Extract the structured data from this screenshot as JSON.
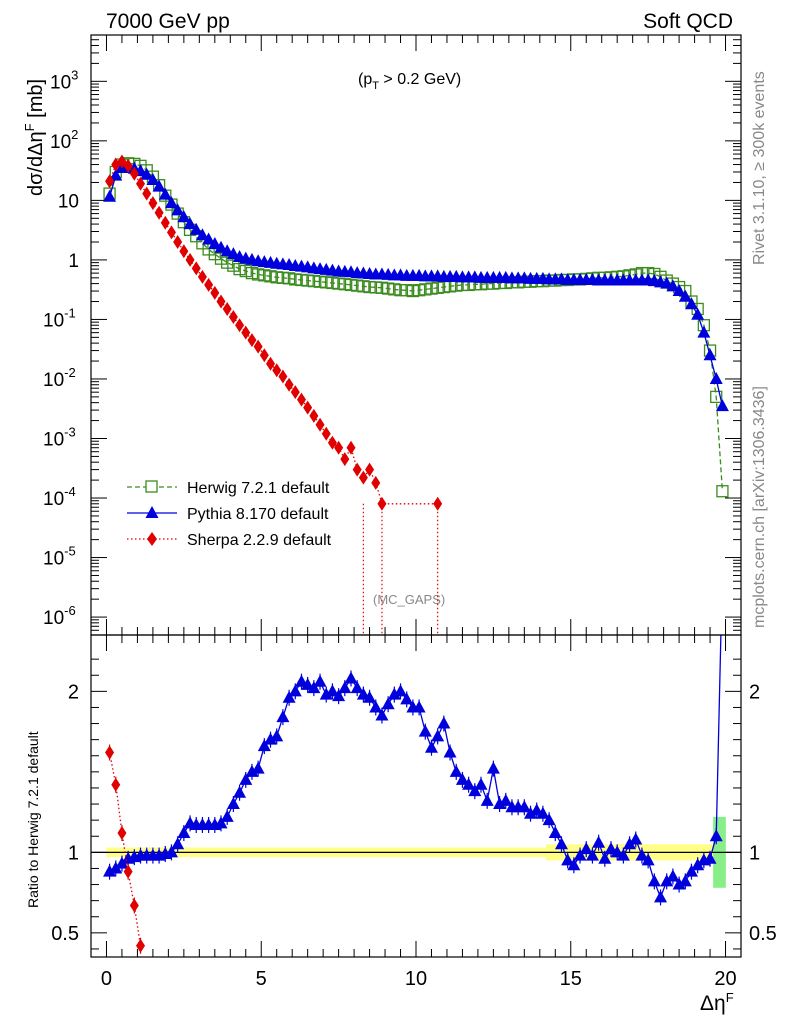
{
  "header": {
    "left": "7000 GeV pp",
    "right": "Soft QCD"
  },
  "side_labels": {
    "rivet": "Rivet 3.1.10, ≥ 300k events",
    "mcplots": "mcplots.cern.ch [arXiv:1306.3436]"
  },
  "chart_data": [
    {
      "type": "scatter",
      "panel": "main",
      "title": "",
      "annotation_cut": "(p",
      "annotation_cut_sub": "T",
      "annotation_cut_rest": " > 0.2 GeV)",
      "annotation_tag": "(MC_GAPS)",
      "ylabel": "dσ/dΔη",
      "ylabel_sup": "F",
      "ylabel_unit": " [mb]",
      "yscale": "log",
      "ylim": [
        5e-07,
        6000
      ],
      "xlim": [
        -0.5,
        20.5
      ],
      "y_ticks": [
        {
          "v": 1e-06,
          "base": "10",
          "exp": "-6"
        },
        {
          "v": 1e-05,
          "base": "10",
          "exp": "-5"
        },
        {
          "v": 0.0001,
          "base": "10",
          "exp": "-4"
        },
        {
          "v": 0.001,
          "base": "10",
          "exp": "-3"
        },
        {
          "v": 0.01,
          "base": "10",
          "exp": "-2"
        },
        {
          "v": 0.1,
          "base": "10",
          "exp": "-1"
        },
        {
          "v": 1,
          "base": "1",
          "exp": ""
        },
        {
          "v": 10,
          "base": "10",
          "exp": ""
        },
        {
          "v": 100,
          "base": "10",
          "exp": "2"
        },
        {
          "v": 1000,
          "base": "10",
          "exp": "3"
        }
      ],
      "legend": {
        "placement": "lower-left",
        "entries": [
          "Herwig 7.2.1 default",
          "Pythia 8.170 default",
          "Sherpa 2.2.9 default"
        ]
      },
      "series": [
        {
          "name": "Herwig 7.2.1 default",
          "color": "#3a8c1e",
          "marker": "open-square",
          "line": "dashed",
          "x": [
            0.1,
            0.3,
            0.5,
            0.7,
            0.9,
            1.1,
            1.3,
            1.5,
            1.7,
            1.9,
            2.1,
            2.3,
            2.5,
            2.7,
            2.9,
            3.1,
            3.3,
            3.5,
            3.7,
            3.9,
            4.1,
            4.3,
            4.5,
            4.7,
            4.9,
            5.1,
            5.3,
            5.5,
            5.7,
            5.9,
            6.1,
            6.3,
            6.5,
            6.7,
            6.9,
            7.1,
            7.3,
            7.5,
            7.7,
            7.9,
            8.1,
            8.3,
            8.5,
            8.7,
            8.9,
            9.1,
            9.3,
            9.5,
            9.7,
            9.9,
            10.1,
            10.3,
            10.5,
            10.7,
            10.9,
            11.1,
            11.3,
            11.5,
            11.7,
            11.9,
            12.1,
            12.3,
            12.5,
            12.7,
            12.9,
            13.1,
            13.3,
            13.5,
            13.7,
            13.9,
            14.1,
            14.3,
            14.5,
            14.7,
            14.9,
            15.1,
            15.3,
            15.5,
            15.7,
            15.9,
            16.1,
            16.3,
            16.5,
            16.7,
            16.9,
            17.1,
            17.3,
            17.5,
            17.7,
            17.9,
            18.1,
            18.3,
            18.5,
            18.7,
            18.9,
            19.1,
            19.3,
            19.5,
            19.7,
            19.9
          ],
          "y": [
            13,
            30,
            40,
            42,
            41,
            38,
            32,
            25,
            18,
            12,
            8.5,
            6,
            4.3,
            3.2,
            2.5,
            1.9,
            1.5,
            1.25,
            1.05,
            0.9,
            0.8,
            0.7,
            0.65,
            0.6,
            0.57,
            0.55,
            0.53,
            0.51,
            0.5,
            0.49,
            0.47,
            0.46,
            0.45,
            0.44,
            0.43,
            0.42,
            0.41,
            0.4,
            0.39,
            0.38,
            0.37,
            0.36,
            0.35,
            0.345,
            0.34,
            0.33,
            0.32,
            0.31,
            0.31,
            0.3,
            0.31,
            0.32,
            0.33,
            0.34,
            0.35,
            0.36,
            0.37,
            0.38,
            0.38,
            0.39,
            0.39,
            0.4,
            0.4,
            0.41,
            0.41,
            0.42,
            0.42,
            0.43,
            0.43,
            0.44,
            0.44,
            0.45,
            0.45,
            0.46,
            0.46,
            0.47,
            0.47,
            0.48,
            0.49,
            0.5,
            0.5,
            0.51,
            0.52,
            0.53,
            0.55,
            0.57,
            0.6,
            0.6,
            0.58,
            0.52,
            0.45,
            0.4,
            0.35,
            0.3,
            0.2,
            0.15,
            0.08,
            0.03,
            0.005,
            0.00013
          ]
        },
        {
          "name": "Pythia 8.170 default",
          "color": "#0000dd",
          "marker": "filled-triangle",
          "line": "solid",
          "x": [
            0.1,
            0.3,
            0.5,
            0.7,
            0.9,
            1.1,
            1.3,
            1.5,
            1.7,
            1.9,
            2.1,
            2.3,
            2.5,
            2.7,
            2.9,
            3.1,
            3.3,
            3.5,
            3.7,
            3.9,
            4.1,
            4.3,
            4.5,
            4.7,
            4.9,
            5.1,
            5.3,
            5.5,
            5.7,
            5.9,
            6.1,
            6.3,
            6.5,
            6.7,
            6.9,
            7.1,
            7.3,
            7.5,
            7.7,
            7.9,
            8.1,
            8.3,
            8.5,
            8.7,
            8.9,
            9.1,
            9.3,
            9.5,
            9.7,
            9.9,
            10.1,
            10.3,
            10.5,
            10.7,
            10.9,
            11.1,
            11.3,
            11.5,
            11.7,
            11.9,
            12.1,
            12.3,
            12.5,
            12.7,
            12.9,
            13.1,
            13.3,
            13.5,
            13.7,
            13.9,
            14.1,
            14.3,
            14.5,
            14.7,
            14.9,
            15.1,
            15.3,
            15.5,
            15.7,
            15.9,
            16.1,
            16.3,
            16.5,
            16.7,
            16.9,
            17.1,
            17.3,
            17.5,
            17.7,
            17.9,
            18.1,
            18.3,
            18.5,
            18.7,
            18.9,
            19.1,
            19.3,
            19.5,
            19.7,
            19.9
          ],
          "y": [
            11.5,
            26,
            35,
            36,
            34,
            31,
            27,
            22,
            17,
            12.5,
            9,
            6.8,
            5.2,
            4,
            3.2,
            2.6,
            2.2,
            1.85,
            1.6,
            1.4,
            1.25,
            1.12,
            1.05,
            1.0,
            0.95,
            0.92,
            0.89,
            0.86,
            0.84,
            0.82,
            0.79,
            0.77,
            0.75,
            0.72,
            0.7,
            0.68,
            0.66,
            0.64,
            0.63,
            0.62,
            0.6,
            0.59,
            0.58,
            0.57,
            0.57,
            0.56,
            0.55,
            0.55,
            0.54,
            0.54,
            0.54,
            0.53,
            0.53,
            0.53,
            0.52,
            0.52,
            0.52,
            0.51,
            0.51,
            0.51,
            0.5,
            0.5,
            0.5,
            0.5,
            0.5,
            0.49,
            0.49,
            0.49,
            0.48,
            0.48,
            0.48,
            0.47,
            0.47,
            0.47,
            0.46,
            0.46,
            0.46,
            0.46,
            0.46,
            0.45,
            0.45,
            0.45,
            0.45,
            0.45,
            0.45,
            0.45,
            0.45,
            0.45,
            0.44,
            0.42,
            0.4,
            0.36,
            0.3,
            0.24,
            0.18,
            0.12,
            0.06,
            0.025,
            0.01,
            0.0035
          ]
        },
        {
          "name": "Sherpa 2.2.9 default",
          "color": "#e00000",
          "marker": "filled-diamond",
          "line": "dotted",
          "x": [
            0.1,
            0.3,
            0.5,
            0.7,
            0.9,
            1.1,
            1.3,
            1.5,
            1.7,
            1.9,
            2.1,
            2.3,
            2.5,
            2.7,
            2.9,
            3.1,
            3.3,
            3.5,
            3.7,
            3.9,
            4.1,
            4.3,
            4.5,
            4.7,
            4.9,
            5.1,
            5.3,
            5.5,
            5.7,
            5.9,
            6.1,
            6.3,
            6.5,
            6.7,
            6.9,
            7.1,
            7.3,
            7.5,
            7.7,
            7.9,
            8.1,
            8.3,
            8.5,
            8.7,
            8.9,
            10.7
          ],
          "y": [
            21,
            40,
            45,
            38,
            28,
            19,
            13,
            9,
            6.2,
            4.2,
            2.9,
            2.0,
            1.4,
            1.0,
            0.72,
            0.52,
            0.38,
            0.28,
            0.2,
            0.15,
            0.11,
            0.08,
            0.06,
            0.045,
            0.035,
            0.025,
            0.018,
            0.014,
            0.011,
            0.008,
            0.006,
            0.0045,
            0.0033,
            0.0024,
            0.0017,
            0.0012,
            0.00085,
            0.0007,
            0.00045,
            0.0007,
            0.0003,
            0.00022,
            0.0003,
            0.00018,
            8e-05,
            8e-05
          ]
        }
      ]
    },
    {
      "type": "scatter",
      "panel": "ratio",
      "title": "",
      "ylabel": "Ratio to Herwig 7.2.1 default",
      "xlabel": "Δη",
      "xlabel_sup": "F",
      "ylim": [
        0.35,
        2.35
      ],
      "xlim": [
        -0.5,
        20.5
      ],
      "x_ticks": [
        0,
        5,
        10,
        15,
        20
      ],
      "y_ticks": [
        0.5,
        1,
        2
      ],
      "series": [
        {
          "name": "Pythia 8.170 default",
          "color": "#0000dd",
          "marker": "filled-triangle",
          "line": "solid",
          "x": [
            0.1,
            0.3,
            0.5,
            0.7,
            0.9,
            1.1,
            1.3,
            1.5,
            1.7,
            1.9,
            2.1,
            2.3,
            2.5,
            2.7,
            2.9,
            3.1,
            3.3,
            3.5,
            3.7,
            3.9,
            4.1,
            4.3,
            4.5,
            4.7,
            4.9,
            5.1,
            5.3,
            5.5,
            5.7,
            5.9,
            6.1,
            6.3,
            6.5,
            6.7,
            6.9,
            7.1,
            7.3,
            7.5,
            7.7,
            7.9,
            8.1,
            8.3,
            8.5,
            8.7,
            8.9,
            9.1,
            9.3,
            9.5,
            9.7,
            9.9,
            10.1,
            10.3,
            10.5,
            10.7,
            10.9,
            11.1,
            11.3,
            11.5,
            11.7,
            11.9,
            12.1,
            12.3,
            12.5,
            12.7,
            12.9,
            13.1,
            13.3,
            13.5,
            13.7,
            13.9,
            14.1,
            14.3,
            14.5,
            14.7,
            14.9,
            15.1,
            15.3,
            15.5,
            15.7,
            15.9,
            16.1,
            16.3,
            16.5,
            16.7,
            16.9,
            17.1,
            17.3,
            17.5,
            17.7,
            17.9,
            18.1,
            18.3,
            18.5,
            18.7,
            18.9,
            19.1,
            19.3,
            19.5,
            19.7
          ],
          "y": [
            0.88,
            0.9,
            0.93,
            0.96,
            0.97,
            0.98,
            0.98,
            0.98,
            0.98,
            0.99,
            1.0,
            1.05,
            1.12,
            1.18,
            1.17,
            1.17,
            1.17,
            1.17,
            1.18,
            1.22,
            1.3,
            1.37,
            1.45,
            1.5,
            1.52,
            1.66,
            1.7,
            1.72,
            1.84,
            1.96,
            2.0,
            2.06,
            2.04,
            2.02,
            2.06,
            1.98,
            2.0,
            1.97,
            2.02,
            2.08,
            2.02,
            1.98,
            1.96,
            1.9,
            1.85,
            1.92,
            1.98,
            2.0,
            1.95,
            1.9,
            1.9,
            1.75,
            1.65,
            1.72,
            1.8,
            1.62,
            1.5,
            1.45,
            1.42,
            1.38,
            1.42,
            1.32,
            1.52,
            1.3,
            1.32,
            1.28,
            1.28,
            1.28,
            1.24,
            1.26,
            1.24,
            1.2,
            1.12,
            1.05,
            0.95,
            0.92,
            0.98,
            1.02,
            0.98,
            1.06,
            0.96,
            1.02,
            1.0,
            0.98,
            1.05,
            1.08,
            0.98,
            0.95,
            0.82,
            0.72,
            0.82,
            0.85,
            0.8,
            0.82,
            0.88,
            0.92,
            0.95,
            0.96,
            1.1
          ]
        },
        {
          "name": "Sherpa 2.2.9 default",
          "color": "#e00000",
          "marker": "filled-diamond",
          "line": "dotted",
          "x": [
            0.1,
            0.3,
            0.5,
            0.7,
            0.9,
            1.1
          ],
          "y": [
            1.62,
            1.42,
            1.12,
            0.88,
            0.67,
            0.42
          ]
        }
      ]
    }
  ]
}
